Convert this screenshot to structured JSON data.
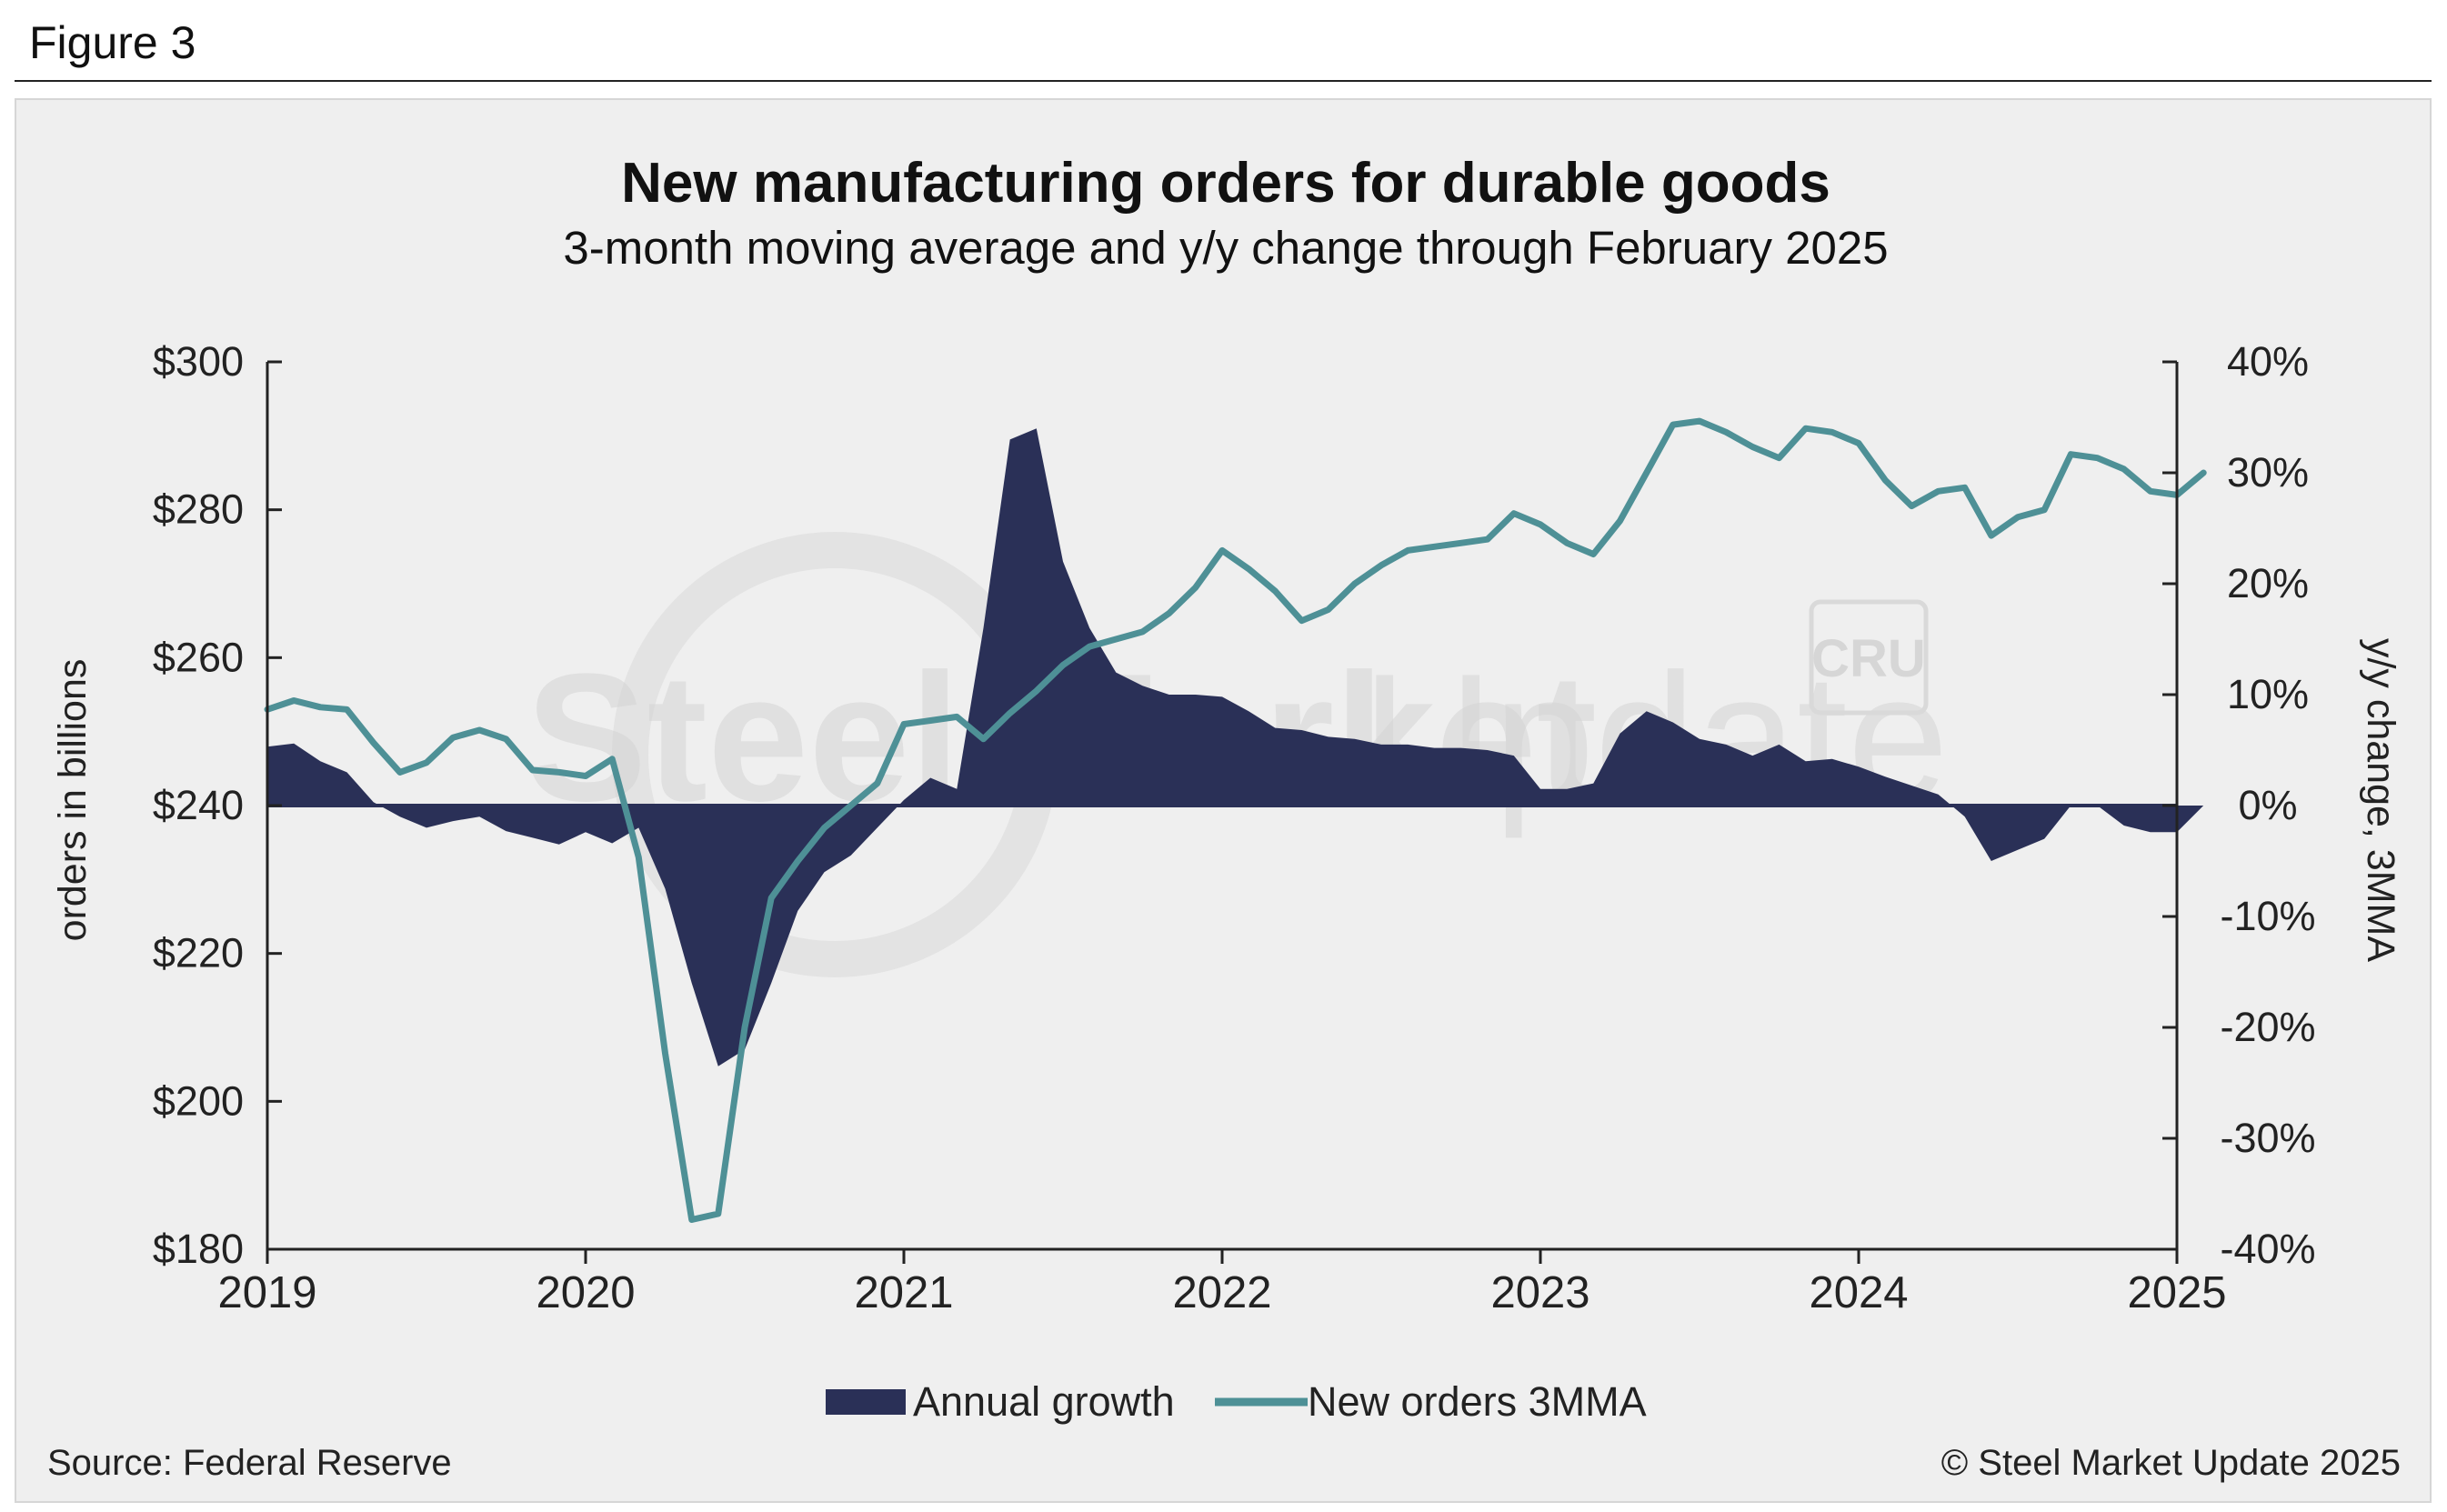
{
  "figure_label": "Figure 3",
  "footer": {
    "source": "Source: Federal Reserve",
    "copyright": "© Steel Market Update 2025"
  },
  "watermark": {
    "brand_bold": "Steel Market",
    "brand_light": "Update",
    "badge": "CRU"
  },
  "colors": {
    "area": "#2a3057",
    "line": "#4e9096",
    "background": "#efefef",
    "axis": "#222222"
  },
  "chart_data": {
    "type": "area+line",
    "title": "New manufacturing orders for durable goods",
    "subtitle": "3-month moving average and y/y change through February 2025",
    "ylabel_left": "orders in billions",
    "ylabel_right": "y/y change, 3MMA",
    "left_axis": {
      "min": 180,
      "max": 300,
      "step": 20,
      "tick_labels": [
        "$180",
        "$200",
        "$220",
        "$240",
        "$260",
        "$280",
        "$300"
      ]
    },
    "right_axis": {
      "min": -40,
      "max": 40,
      "step": 10,
      "tick_labels": [
        "-40%",
        "-30%",
        "-20%",
        "-10%",
        "0%",
        "10%",
        "20%",
        "30%",
        "40%"
      ]
    },
    "x_axis": {
      "min": 2019.0,
      "max": 2025.0,
      "tick_labels": [
        "2019",
        "2020",
        "2021",
        "2022",
        "2023",
        "2024",
        "2025"
      ]
    },
    "series": [
      {
        "name": "Annual growth",
        "type": "area",
        "axis": "right",
        "x": [
          2019.0,
          2019.0833,
          2019.1667,
          2019.25,
          2019.3333,
          2019.4167,
          2019.5,
          2019.5833,
          2019.6667,
          2019.75,
          2019.8333,
          2019.9167,
          2020.0,
          2020.0833,
          2020.1667,
          2020.25,
          2020.3333,
          2020.4167,
          2020.5,
          2020.5833,
          2020.6667,
          2020.75,
          2020.8333,
          2020.9167,
          2021.0,
          2021.0833,
          2021.1667,
          2021.25,
          2021.3333,
          2021.4167,
          2021.5,
          2021.5833,
          2021.6667,
          2021.75,
          2021.8333,
          2021.9167,
          2022.0,
          2022.0833,
          2022.1667,
          2022.25,
          2022.3333,
          2022.4167,
          2022.5,
          2022.5833,
          2022.6667,
          2022.75,
          2022.8333,
          2022.9167,
          2023.0,
          2023.0833,
          2023.1667,
          2023.25,
          2023.3333,
          2023.4167,
          2023.5,
          2023.5833,
          2023.6667,
          2023.75,
          2023.8333,
          2023.9167,
          2024.0,
          2024.0833,
          2024.1667,
          2024.25,
          2024.3333,
          2024.4167,
          2024.5,
          2024.5833,
          2024.6667,
          2024.75,
          2024.8333,
          2024.9167,
          2025.0,
          2025.0833
        ],
        "values": [
          5.3,
          5.6,
          4.0,
          3.0,
          0.3,
          -1.0,
          -2.0,
          -1.4,
          -1.0,
          -2.3,
          -2.9,
          -3.5,
          -2.4,
          -3.4,
          -2.0,
          -7.5,
          -16.0,
          -23.5,
          -22.0,
          -16.0,
          -9.5,
          -6.0,
          -4.5,
          -2.0,
          0.5,
          2.5,
          1.5,
          16.0,
          33.0,
          34.0,
          22.0,
          16.0,
          12.0,
          10.8,
          10.0,
          10.0,
          9.8,
          8.5,
          7.0,
          6.8,
          6.2,
          6.0,
          5.5,
          5.5,
          5.2,
          5.2,
          5.0,
          4.5,
          1.5,
          1.5,
          2.0,
          6.5,
          8.5,
          7.5,
          6.0,
          5.5,
          4.5,
          5.5,
          4.0,
          4.2,
          3.5,
          2.6,
          1.8,
          1.0,
          -1.0,
          -5.0,
          -4.0,
          -3.0,
          0.0,
          0.0,
          -1.8,
          -2.4,
          -2.4,
          0.0
        ]
      },
      {
        "name": "New orders 3MMA",
        "type": "line",
        "axis": "left",
        "x": [
          2019.0,
          2019.0833,
          2019.1667,
          2019.25,
          2019.3333,
          2019.4167,
          2019.5,
          2019.5833,
          2019.6667,
          2019.75,
          2019.8333,
          2019.9167,
          2020.0,
          2020.0833,
          2020.1667,
          2020.25,
          2020.3333,
          2020.4167,
          2020.5,
          2020.5833,
          2020.6667,
          2020.75,
          2020.8333,
          2020.9167,
          2021.0,
          2021.0833,
          2021.1667,
          2021.25,
          2021.3333,
          2021.4167,
          2021.5,
          2021.5833,
          2021.6667,
          2021.75,
          2021.8333,
          2021.9167,
          2022.0,
          2022.0833,
          2022.1667,
          2022.25,
          2022.3333,
          2022.4167,
          2022.5,
          2022.5833,
          2022.6667,
          2022.75,
          2022.8333,
          2022.9167,
          2023.0,
          2023.0833,
          2023.1667,
          2023.25,
          2023.3333,
          2023.4167,
          2023.5,
          2023.5833,
          2023.6667,
          2023.75,
          2023.8333,
          2023.9167,
          2024.0,
          2024.0833,
          2024.1667,
          2024.25,
          2024.3333,
          2024.4167,
          2024.5,
          2024.5833,
          2024.6667,
          2024.75,
          2024.8333,
          2024.9167,
          2025.0,
          2025.0833
        ],
        "values": [
          253.0,
          254.2,
          253.3,
          253.0,
          248.5,
          244.5,
          245.8,
          249.2,
          250.2,
          249.0,
          244.8,
          244.5,
          244.0,
          246.3,
          233.0,
          206.5,
          184.0,
          184.8,
          210.0,
          227.5,
          232.5,
          237.0,
          240.0,
          243.0,
          251.0,
          251.5,
          252.0,
          249.0,
          252.5,
          255.5,
          259.0,
          261.5,
          262.5,
          263.5,
          266.0,
          269.5,
          274.5,
          272.0,
          269.0,
          265.0,
          266.5,
          270.0,
          272.5,
          274.5,
          275.0,
          275.5,
          276.0,
          279.5,
          278.0,
          275.5,
          274.0,
          278.5,
          285.0,
          291.5,
          292.0,
          290.5,
          288.5,
          287.0,
          291.0,
          290.5,
          289.0,
          284.0,
          280.5,
          282.5,
          283.0,
          276.5,
          279.0,
          280.0,
          287.5,
          287.0,
          285.5,
          282.5,
          282.0,
          285.0
        ]
      }
    ],
    "legend": [
      "Annual growth",
      "New orders 3MMA"
    ],
    "legend_position": "bottom-center"
  }
}
